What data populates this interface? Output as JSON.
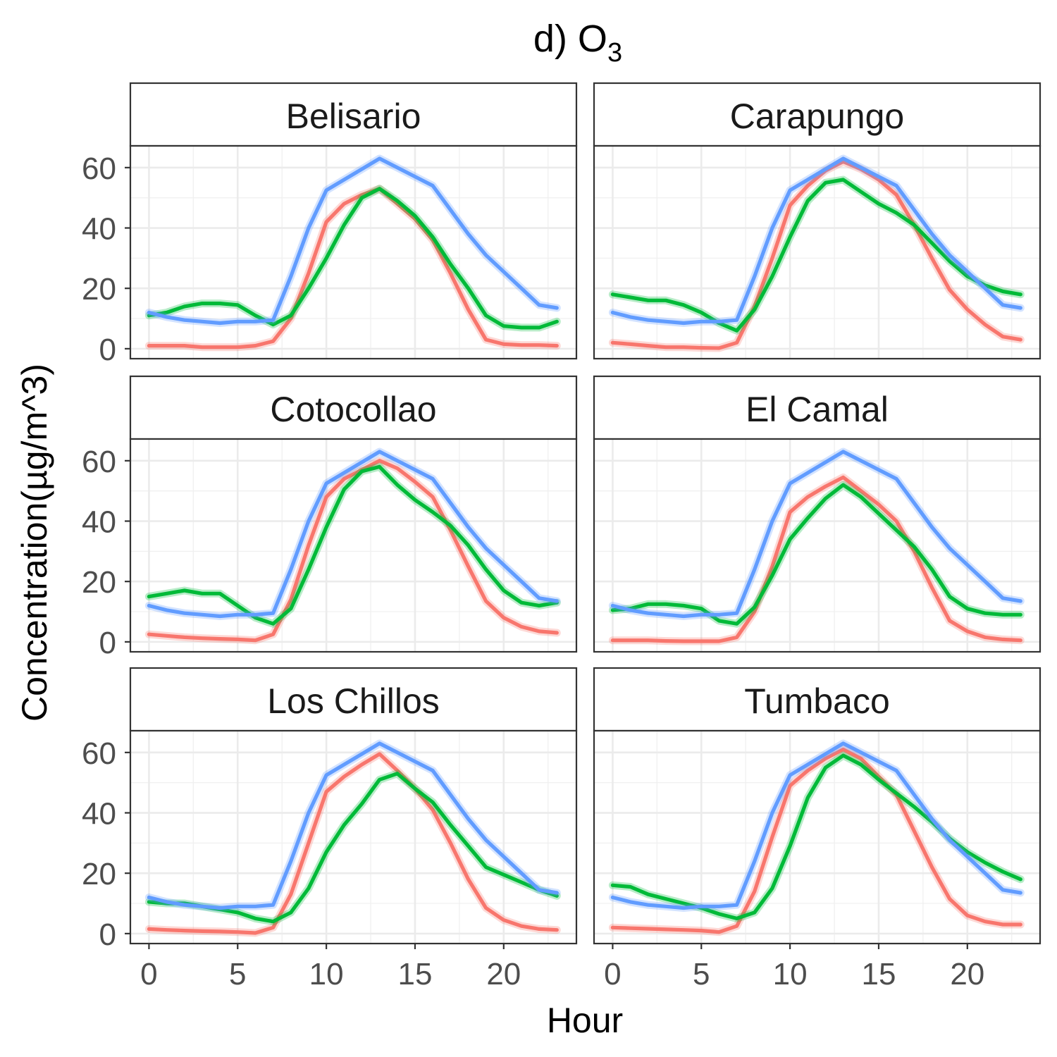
{
  "chart_data": {
    "type": "line",
    "title": "d) O",
    "title_subscript": "3",
    "xlabel": "Hour",
    "ylabel": "Concentration(µg/m^3)",
    "xlim": [
      -1.05,
      24.1
    ],
    "ylim": [
      -3.3,
      67.2
    ],
    "x_ticks": [
      0,
      5,
      10,
      15,
      20
    ],
    "y_ticks": [
      0,
      20,
      40,
      60
    ],
    "grid": true,
    "legend": "none",
    "layout": {
      "rows": 3,
      "cols": 2
    },
    "series_colors": [
      "#F8766D",
      "#00BA38",
      "#619CFF"
    ],
    "x": [
      0,
      1,
      2,
      3,
      4,
      5,
      6,
      7,
      8,
      9,
      10,
      11,
      12,
      13,
      14,
      15,
      16,
      17,
      18,
      19,
      20,
      21,
      22,
      23
    ],
    "panels": [
      {
        "label": "Belisario",
        "series": [
          {
            "color": "#F8766D",
            "values": [
              1,
              1,
              1,
              0.5,
              0.5,
              0.5,
              1,
              2.5,
              10,
              25,
              42,
              48,
              51,
              53,
              48,
              43,
              36,
              25,
              13,
              3,
              1.5,
              1.2,
              1.2,
              1
            ]
          },
          {
            "color": "#00BA38",
            "values": [
              11,
              12,
              14,
              15,
              15,
              14.5,
              11,
              8,
              11,
              20,
              30,
              41,
              50,
              53,
              49,
              44,
              37,
              28,
              20,
              11,
              7.5,
              7,
              7,
              9
            ]
          },
          {
            "color": "#619CFF",
            "values": [
              12,
              10.5,
              9.5,
              9,
              8.5,
              9,
              9,
              9.5,
              24,
              40,
              52.5,
              56,
              59.5,
              63,
              60,
              57,
              54,
              46,
              38,
              31,
              25.5,
              20,
              14.5,
              13.5
            ]
          }
        ]
      },
      {
        "label": "Carapungo",
        "series": [
          {
            "color": "#F8766D",
            "values": [
              2,
              1.5,
              1,
              0.5,
              0.5,
              0.3,
              0.2,
              2,
              14,
              30,
              47.5,
              54,
              59,
              62,
              59.5,
              56,
              51,
              41,
              30,
              19.5,
              13,
              8,
              4,
              3
            ]
          },
          {
            "color": "#00BA38",
            "values": [
              18,
              17,
              16,
              16,
              14.5,
              12,
              8.5,
              6,
              13,
              24,
              37,
              49,
              55,
              56,
              52,
              48,
              45,
              41,
              35,
              29,
              24,
              21,
              19,
              18
            ]
          },
          {
            "color": "#619CFF",
            "values": [
              12,
              10.5,
              9.5,
              9,
              8.5,
              9,
              9,
              9.5,
              24,
              40,
              52.5,
              56,
              59.5,
              63,
              60,
              57,
              54,
              46,
              38,
              31,
              25.5,
              20,
              14.5,
              13.5
            ]
          }
        ]
      },
      {
        "label": "Cotocollao",
        "series": [
          {
            "color": "#F8766D",
            "values": [
              2.5,
              2,
              1.5,
              1.2,
              1,
              0.8,
              0.5,
              2.5,
              14,
              32,
              48,
              54,
              57,
              60,
              57.5,
              53,
              48,
              37,
              25,
              13.5,
              8,
              5,
              3.5,
              3
            ]
          },
          {
            "color": "#00BA38",
            "values": [
              15,
              16,
              17,
              16,
              16,
              12,
              8,
              6,
              11,
              24,
              38,
              50.5,
              56.5,
              58,
              52,
              47,
              43,
              38.5,
              32,
              24,
              17,
              13,
              12,
              13
            ]
          },
          {
            "color": "#619CFF",
            "values": [
              12,
              10.5,
              9.5,
              9,
              8.5,
              9,
              9,
              9.5,
              24,
              40,
              52.5,
              56,
              59.5,
              63,
              60,
              57,
              54,
              46,
              38,
              31,
              25.5,
              20,
              14.5,
              13.5
            ]
          }
        ]
      },
      {
        "label": "El Camal",
        "series": [
          {
            "color": "#F8766D",
            "values": [
              0.5,
              0.5,
              0.5,
              0.3,
              0.2,
              0.2,
              0.2,
              1.5,
              10,
              25,
              43,
              48,
              51.5,
              54.5,
              50,
              45.5,
              40,
              30,
              18,
              7,
              3.5,
              1.5,
              0.8,
              0.5
            ]
          },
          {
            "color": "#00BA38",
            "values": [
              10.5,
              11,
              12.5,
              12.5,
              12,
              11,
              7,
              6,
              11.5,
              22,
              34,
              41,
              47.5,
              52,
              48,
              42.5,
              37,
              31.5,
              24,
              15,
              11,
              9.5,
              9,
              9
            ]
          },
          {
            "color": "#619CFF",
            "values": [
              12,
              10.5,
              9.5,
              9,
              8.5,
              9,
              9,
              9.5,
              24,
              40,
              52.5,
              56,
              59.5,
              63,
              60,
              57,
              54,
              46,
              38,
              31,
              25.5,
              20,
              14.5,
              13.5
            ]
          }
        ]
      },
      {
        "label": "Los Chillos",
        "series": [
          {
            "color": "#F8766D",
            "values": [
              1.5,
              1.2,
              1,
              0.8,
              0.7,
              0.5,
              0.2,
              2,
              13,
              30,
              47,
              52,
              56,
              59.5,
              54,
              48,
              41,
              30,
              18,
              8.5,
              4.5,
              2.5,
              1.5,
              1.2
            ]
          },
          {
            "color": "#00BA38",
            "values": [
              10.5,
              10,
              10,
              9,
              8,
              7,
              5,
              4,
              7,
              15,
              27,
              36,
              43,
              51,
              53,
              48,
              43.5,
              36,
              29,
              22,
              19.5,
              17,
              14.5,
              12.5
            ]
          },
          {
            "color": "#619CFF",
            "values": [
              12,
              10.5,
              9.5,
              9,
              8.5,
              9,
              9,
              9.5,
              24,
              40,
              52.5,
              56,
              59.5,
              63,
              60,
              57,
              54,
              46,
              38,
              31,
              25.5,
              20,
              14.5,
              13.5
            ]
          }
        ]
      },
      {
        "label": "Tumbaco",
        "series": [
          {
            "color": "#F8766D",
            "values": [
              2,
              1.8,
              1.6,
              1.4,
              1.2,
              1,
              0.5,
              2.5,
              14,
              32,
              49,
              54,
              58,
              61,
              58,
              52,
              46,
              34,
              22,
              11.5,
              6,
              4,
              3,
              3
            ]
          },
          {
            "color": "#00BA38",
            "values": [
              16,
              15.5,
              13,
              11.5,
              10,
              8.5,
              6.5,
              5,
              7,
              15,
              29,
              45,
              55,
              59,
              56,
              51,
              46.5,
              42,
              37,
              31.5,
              27,
              23.5,
              20.5,
              18
            ]
          },
          {
            "color": "#619CFF",
            "values": [
              12,
              10.5,
              9.5,
              9,
              8.5,
              9,
              9,
              9.5,
              24,
              40,
              52.5,
              56,
              59.5,
              63,
              60,
              57,
              54,
              46,
              38,
              31,
              25.5,
              20,
              14.5,
              13.5
            ]
          }
        ]
      }
    ]
  }
}
